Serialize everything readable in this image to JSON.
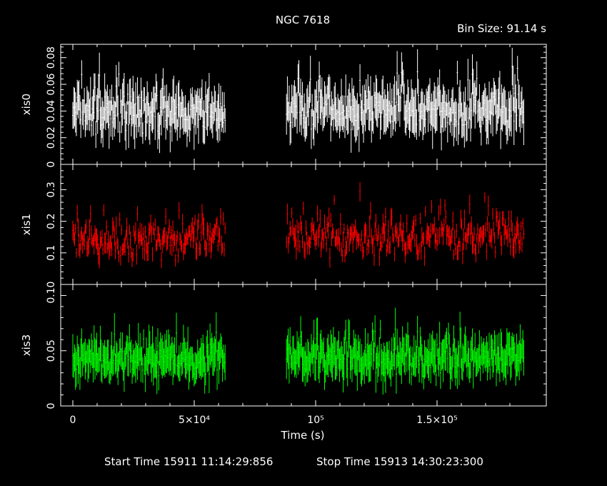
{
  "header": {
    "title": "NGC 7618",
    "bin_size": "Bin Size: 91.14 s"
  },
  "footer": {
    "start_time": "Start Time 15911 11:14:29:856",
    "stop_time": "Stop Time 15913 14:30:23:300"
  },
  "chart_data": {
    "type": "scatter",
    "x_axis": {
      "label": "Time (s)",
      "range": [
        -5000,
        195000
      ],
      "tick_labels": [
        "0",
        "5×10⁴",
        "10⁵",
        "1.5×10⁵"
      ],
      "tick_values": [
        0,
        50000,
        100000,
        150000
      ]
    },
    "bin_size_s": 91.14,
    "panels": [
      {
        "name": "xis0",
        "color": "#ffffff",
        "ylabel": "xis0",
        "ylim": [
          0,
          0.09
        ],
        "yticks": [
          0,
          0.02,
          0.04,
          0.06,
          0.08
        ],
        "ytick_labels": [
          "0",
          "0.02",
          "0.04",
          "0.06",
          "0.08"
        ],
        "segments": [
          {
            "x_start": 0,
            "x_end": 63000,
            "mean": 0.038,
            "spread": 0.012,
            "err": 0.013
          },
          {
            "x_start": 88000,
            "x_end": 186000,
            "mean": 0.04,
            "spread": 0.012,
            "err": 0.013
          }
        ]
      },
      {
        "name": "xis1",
        "color": "#ff0000",
        "ylabel": "xis1",
        "ylim": [
          0,
          0.38
        ],
        "yticks": [
          0,
          0.1,
          0.2,
          0.3
        ],
        "ytick_labels": [
          "0",
          "0.1",
          "0.2",
          "0.3"
        ],
        "segments": [
          {
            "x_start": 0,
            "x_end": 63000,
            "mean": 0.14,
            "spread": 0.05,
            "err": 0.025
          },
          {
            "x_start": 88000,
            "x_end": 186000,
            "mean": 0.15,
            "spread": 0.05,
            "err": 0.025
          }
        ]
      },
      {
        "name": "xis3",
        "color": "#00ff00",
        "ylabel": "xis3",
        "ylim": [
          0,
          0.11
        ],
        "yticks": [
          0,
          0.05,
          0.1
        ],
        "ytick_labels": [
          "0",
          "0.05",
          "0.1"
        ],
        "segments": [
          {
            "x_start": 0,
            "x_end": 63000,
            "mean": 0.042,
            "spread": 0.012,
            "err": 0.014
          },
          {
            "x_start": 88000,
            "x_end": 186000,
            "mean": 0.043,
            "spread": 0.012,
            "err": 0.014
          }
        ]
      }
    ]
  }
}
